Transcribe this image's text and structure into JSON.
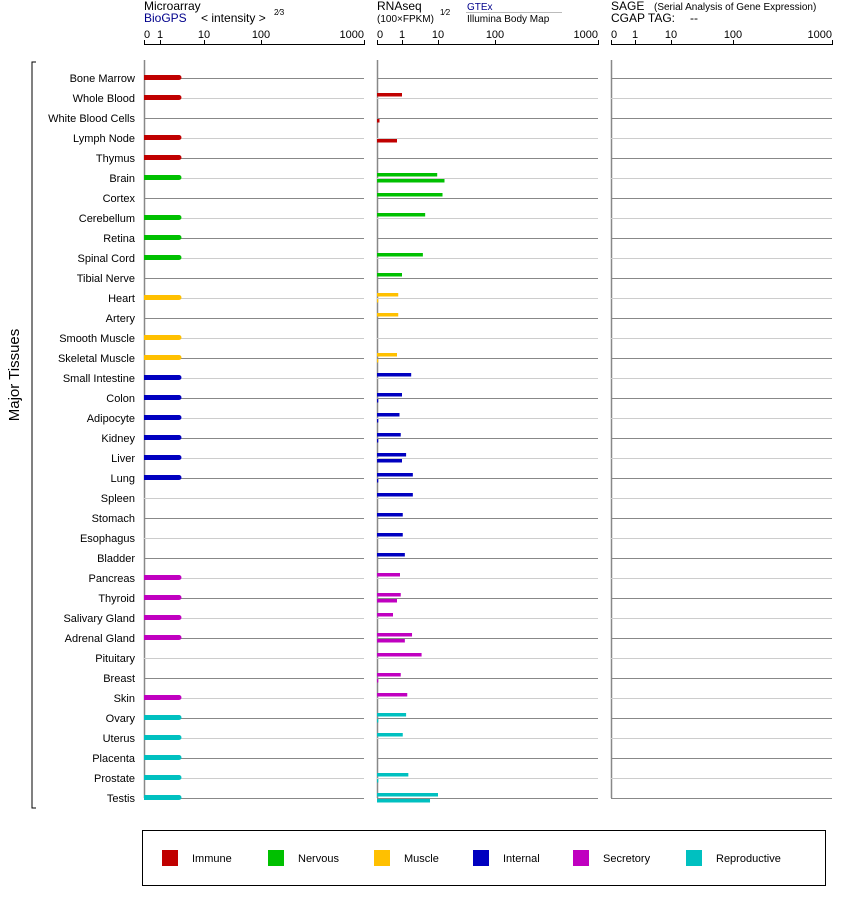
{
  "chart_data": {
    "type": "bar",
    "ylabel": "Major Tissues",
    "tick_labels": [
      "0",
      "1",
      "10",
      "100",
      "1000"
    ],
    "tick_values": [
      0,
      1,
      10,
      100,
      1000
    ],
    "panels": [
      {
        "title": "Microarray",
        "source": "BioGPS",
        "unit": "< intensity >",
        "unit_exp": "2⁄3"
      },
      {
        "title": "RNAseq",
        "unit": "(100×FPKM)",
        "unit_exp": "1⁄2",
        "source_upper": "GTEx",
        "source_lower": "Illumina Body Map"
      },
      {
        "title": "SAGE",
        "subtitle": "(Serial Analysis of Gene Expression)",
        "tag_label": "CGAP TAG:",
        "tag_value": "--"
      }
    ],
    "categories": [
      "Immune",
      "Nervous",
      "Muscle",
      "Internal",
      "Secretory",
      "Reproductive"
    ],
    "colors": {
      "Immune": "#c00000",
      "Nervous": "#00c000",
      "Muscle": "#ffc000",
      "Internal": "#0000c0",
      "Secretory": "#c000c0",
      "Reproductive": "#00c0c0"
    },
    "tissues": [
      {
        "name": "Bone Marrow",
        "cat": "Immune",
        "microarray": 2.7,
        "gtex": 0,
        "illumina": 0
      },
      {
        "name": "Whole Blood",
        "cat": "Immune",
        "microarray": 2.7,
        "gtex": 1.0,
        "illumina": 0
      },
      {
        "name": "White Blood Cells",
        "cat": "Immune",
        "microarray": 0,
        "gtex": 0,
        "illumina": 0.1
      },
      {
        "name": "Lymph Node",
        "cat": "Immune",
        "microarray": 2.7,
        "gtex": 0,
        "illumina": 0.8
      },
      {
        "name": "Thymus",
        "cat": "Immune",
        "microarray": 2.7,
        "gtex": 0,
        "illumina": 0
      },
      {
        "name": "Brain",
        "cat": "Nervous",
        "microarray": 2.7,
        "gtex": 9.5,
        "illumina": 13
      },
      {
        "name": "Cortex",
        "cat": "Nervous",
        "microarray": 0,
        "gtex": 12,
        "illumina": 0
      },
      {
        "name": "Cerebellum",
        "cat": "Nervous",
        "microarray": 2.7,
        "gtex": 4.4,
        "illumina": 0
      },
      {
        "name": "Retina",
        "cat": "Nervous",
        "microarray": 2.7,
        "gtex": 0,
        "illumina": 0
      },
      {
        "name": "Spinal Cord",
        "cat": "Nervous",
        "microarray": 2.7,
        "gtex": 3.8,
        "illumina": 0
      },
      {
        "name": "Tibial Nerve",
        "cat": "Nervous",
        "microarray": 0,
        "gtex": 1.0,
        "illumina": 0
      },
      {
        "name": "Heart",
        "cat": "Muscle",
        "microarray": 2.7,
        "gtex": 0.85,
        "illumina": 0.05
      },
      {
        "name": "Artery",
        "cat": "Muscle",
        "microarray": 0,
        "gtex": 0.85,
        "illumina": 0
      },
      {
        "name": "Smooth Muscle",
        "cat": "Muscle",
        "microarray": 2.7,
        "gtex": 0,
        "illumina": 0
      },
      {
        "name": "Skeletal Muscle",
        "cat": "Muscle",
        "microarray": 2.7,
        "gtex": 0.8,
        "illumina": 0.05
      },
      {
        "name": "Small Intestine",
        "cat": "Internal",
        "microarray": 2.7,
        "gtex": 1.8,
        "illumina": 0
      },
      {
        "name": "Colon",
        "cat": "Internal",
        "microarray": 2.7,
        "gtex": 1.0,
        "illumina": 0.05
      },
      {
        "name": "Adipocyte",
        "cat": "Internal",
        "microarray": 2.7,
        "gtex": 0.9,
        "illumina": 0.05
      },
      {
        "name": "Kidney",
        "cat": "Internal",
        "microarray": 2.7,
        "gtex": 0.95,
        "illumina": 0.05
      },
      {
        "name": "Liver",
        "cat": "Internal",
        "microarray": 2.7,
        "gtex": 1.3,
        "illumina": 1.0
      },
      {
        "name": "Lung",
        "cat": "Internal",
        "microarray": 2.7,
        "gtex": 2.0,
        "illumina": 0.05
      },
      {
        "name": "Spleen",
        "cat": "Internal",
        "microarray": 0,
        "gtex": 2.0,
        "illumina": 0
      },
      {
        "name": "Stomach",
        "cat": "Internal",
        "microarray": 0,
        "gtex": 1.05,
        "illumina": 0
      },
      {
        "name": "Esophagus",
        "cat": "Internal",
        "microarray": 0,
        "gtex": 1.05,
        "illumina": 0
      },
      {
        "name": "Bladder",
        "cat": "Internal",
        "microarray": 0,
        "gtex": 1.2,
        "illumina": 0
      },
      {
        "name": "Pancreas",
        "cat": "Secretory",
        "microarray": 2.7,
        "gtex": 0.92,
        "illumina": 0
      },
      {
        "name": "Thyroid",
        "cat": "Secretory",
        "microarray": 2.7,
        "gtex": 0.95,
        "illumina": 0.8
      },
      {
        "name": "Salivary Gland",
        "cat": "Secretory",
        "microarray": 2.7,
        "gtex": 0.64,
        "illumina": 0
      },
      {
        "name": "Adrenal Gland",
        "cat": "Secretory",
        "microarray": 2.7,
        "gtex": 1.9,
        "illumina": 1.2
      },
      {
        "name": "Pituitary",
        "cat": "Secretory",
        "microarray": 0,
        "gtex": 3.5,
        "illumina": 0
      },
      {
        "name": "Breast",
        "cat": "Secretory",
        "microarray": 0,
        "gtex": 0.95,
        "illumina": 0.05
      },
      {
        "name": "Skin",
        "cat": "Secretory",
        "microarray": 2.7,
        "gtex": 1.4,
        "illumina": 0
      },
      {
        "name": "Ovary",
        "cat": "Reproductive",
        "microarray": 2.7,
        "gtex": 1.3,
        "illumina": 0.05
      },
      {
        "name": "Uterus",
        "cat": "Reproductive",
        "microarray": 2.7,
        "gtex": 1.05,
        "illumina": 0
      },
      {
        "name": "Placenta",
        "cat": "Reproductive",
        "microarray": 2.7,
        "gtex": 0,
        "illumina": 0
      },
      {
        "name": "Prostate",
        "cat": "Reproductive",
        "microarray": 2.7,
        "gtex": 1.5,
        "illumina": 0.05
      },
      {
        "name": "Testis",
        "cat": "Reproductive",
        "microarray": 2.7,
        "gtex": 10,
        "illumina": 6
      }
    ]
  }
}
